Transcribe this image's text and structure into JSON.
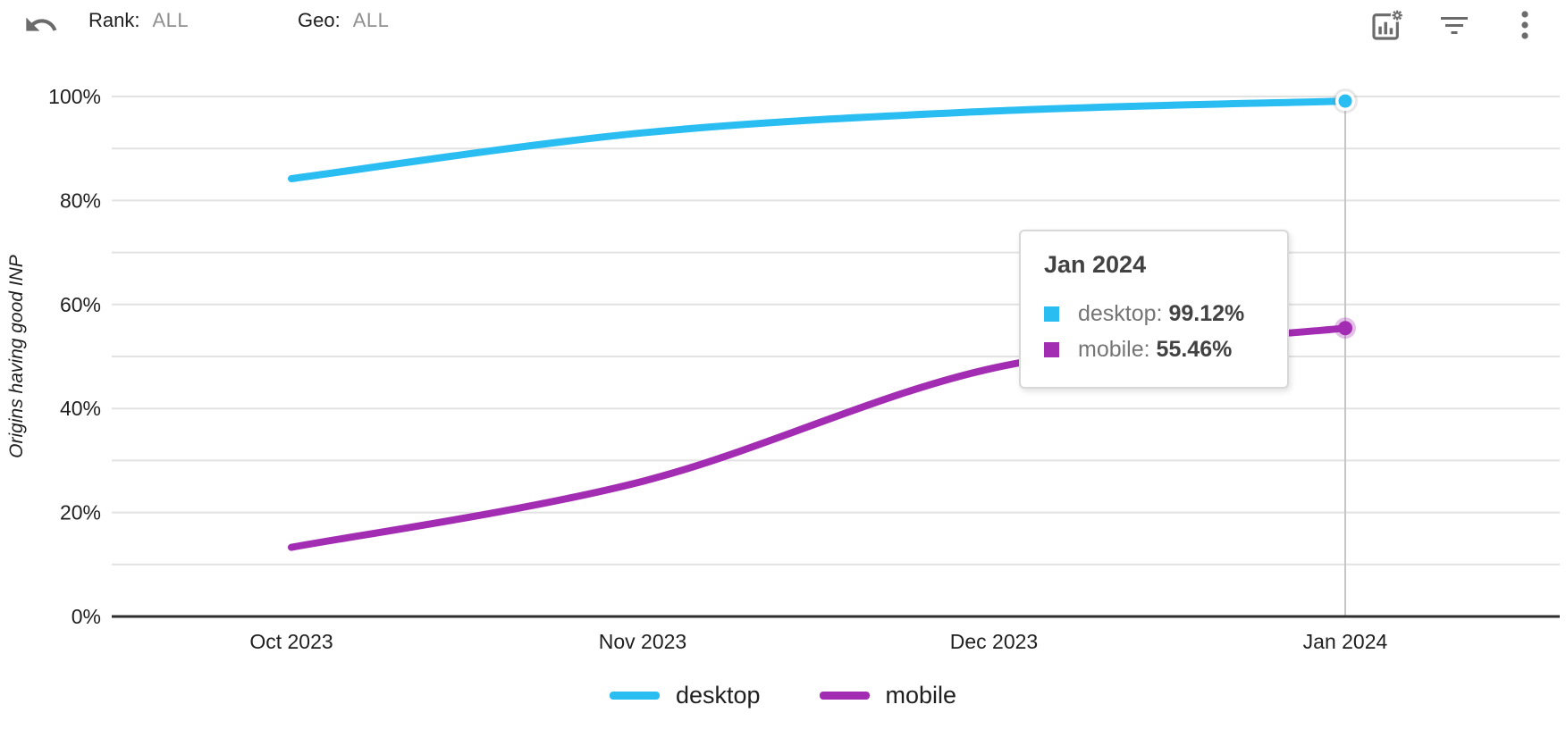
{
  "header": {
    "rank_label": "Rank:",
    "rank_value": "ALL",
    "geo_label": "Geo:",
    "geo_value": "ALL"
  },
  "chart_data": {
    "type": "line",
    "title": "",
    "ylabel": "Origins having good INP",
    "xlabel": "",
    "categories": [
      "Oct 2023",
      "Nov 2023",
      "Dec 2023",
      "Jan 2024"
    ],
    "series": [
      {
        "name": "desktop",
        "color": "#29bdf2",
        "values": [
          84.2,
          93.0,
          97.2,
          99.12
        ]
      },
      {
        "name": "mobile",
        "color": "#a32db2",
        "values": [
          13.3,
          26.0,
          47.8,
          55.46
        ]
      }
    ],
    "ylim": [
      0,
      100
    ],
    "y_tick_step_minor": 10,
    "y_tick_step_labeled": 20,
    "y_tick_suffix": "%",
    "grid": true,
    "legend_position": "bottom",
    "highlighted_category": "Jan 2024"
  },
  "tooltip": {
    "title": "Jan 2024",
    "rows": [
      {
        "label": "desktop:",
        "value": "99.12%",
        "color": "#29bdf2"
      },
      {
        "label": "mobile:",
        "value": "55.46%",
        "color": "#a32db2"
      }
    ]
  },
  "legend": {
    "items": [
      {
        "label": "desktop",
        "color": "#29bdf2"
      },
      {
        "label": "mobile",
        "color": "#a32db2"
      }
    ]
  },
  "icon_colors": {
    "header_icon": "#6b6b6b"
  }
}
